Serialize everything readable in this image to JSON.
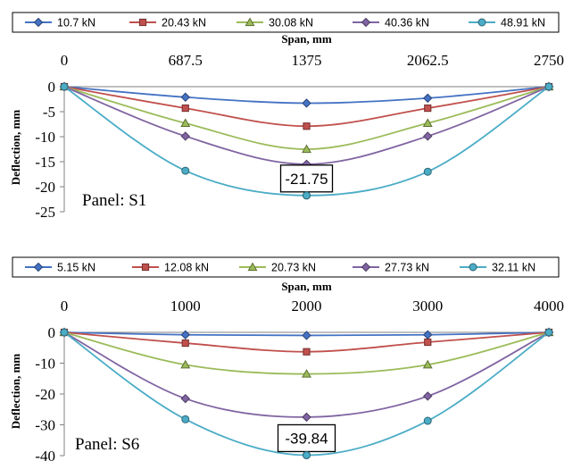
{
  "colors": [
    "#4472c4",
    "#c0504d",
    "#9bbb59",
    "#8064a2",
    "#4bacc6"
  ],
  "markers": [
    "diamond",
    "square",
    "triangle",
    "diamond",
    "circle"
  ],
  "chart_data": [
    {
      "type": "line",
      "panel_label": "Panel: S1",
      "xlabel": "Span, mm",
      "ylabel": "Deflection, mm",
      "x_ticks": [
        "0",
        "687.5",
        "1375",
        "2062.5",
        "2750"
      ],
      "y_ticks": [
        "0",
        "-5",
        "-10",
        "-15",
        "-20",
        "-25"
      ],
      "xlim": [
        0,
        2750
      ],
      "ylim": [
        -25,
        0
      ],
      "x": [
        0,
        687.5,
        1375,
        2062.5,
        2750
      ],
      "series": [
        {
          "name": "10.7 kN",
          "values": [
            0,
            -2.1,
            -3.3,
            -2.3,
            0
          ]
        },
        {
          "name": "20.43 kN",
          "values": [
            0,
            -4.3,
            -7.9,
            -4.3,
            0
          ]
        },
        {
          "name": "30.08 kN",
          "values": [
            0,
            -7.3,
            -12.5,
            -7.3,
            0
          ]
        },
        {
          "name": "40.36 kN",
          "values": [
            0,
            -9.9,
            -15.5,
            -9.9,
            0
          ]
        },
        {
          "name": "48.91 kN",
          "values": [
            0,
            -16.8,
            -21.75,
            -17.0,
            0
          ]
        }
      ],
      "callout": "-21.75"
    },
    {
      "type": "line",
      "panel_label": "Panel: S6",
      "xlabel": "Span, mm",
      "ylabel": "Deflection, mm",
      "x_ticks": [
        "0",
        "1000",
        "2000",
        "3000",
        "4000"
      ],
      "y_ticks": [
        "0",
        "-10",
        "-20",
        "-30",
        "-40"
      ],
      "xlim": [
        0,
        4000
      ],
      "ylim": [
        -40,
        0
      ],
      "x": [
        0,
        1000,
        2000,
        3000,
        4000
      ],
      "series": [
        {
          "name": "5.15 kN",
          "values": [
            0,
            -0.8,
            -1.0,
            -0.8,
            0
          ]
        },
        {
          "name": "12.08 kN",
          "values": [
            0,
            -3.5,
            -6.3,
            -3.2,
            0
          ]
        },
        {
          "name": "20.73 kN",
          "values": [
            0,
            -10.5,
            -13.5,
            -10.5,
            0
          ]
        },
        {
          "name": "27.73 kN",
          "values": [
            0,
            -21.5,
            -27.5,
            -20.7,
            0
          ]
        },
        {
          "name": "32.11 kN",
          "values": [
            0,
            -28.2,
            -39.84,
            -28.7,
            0
          ]
        }
      ],
      "callout": "-39.84"
    }
  ]
}
